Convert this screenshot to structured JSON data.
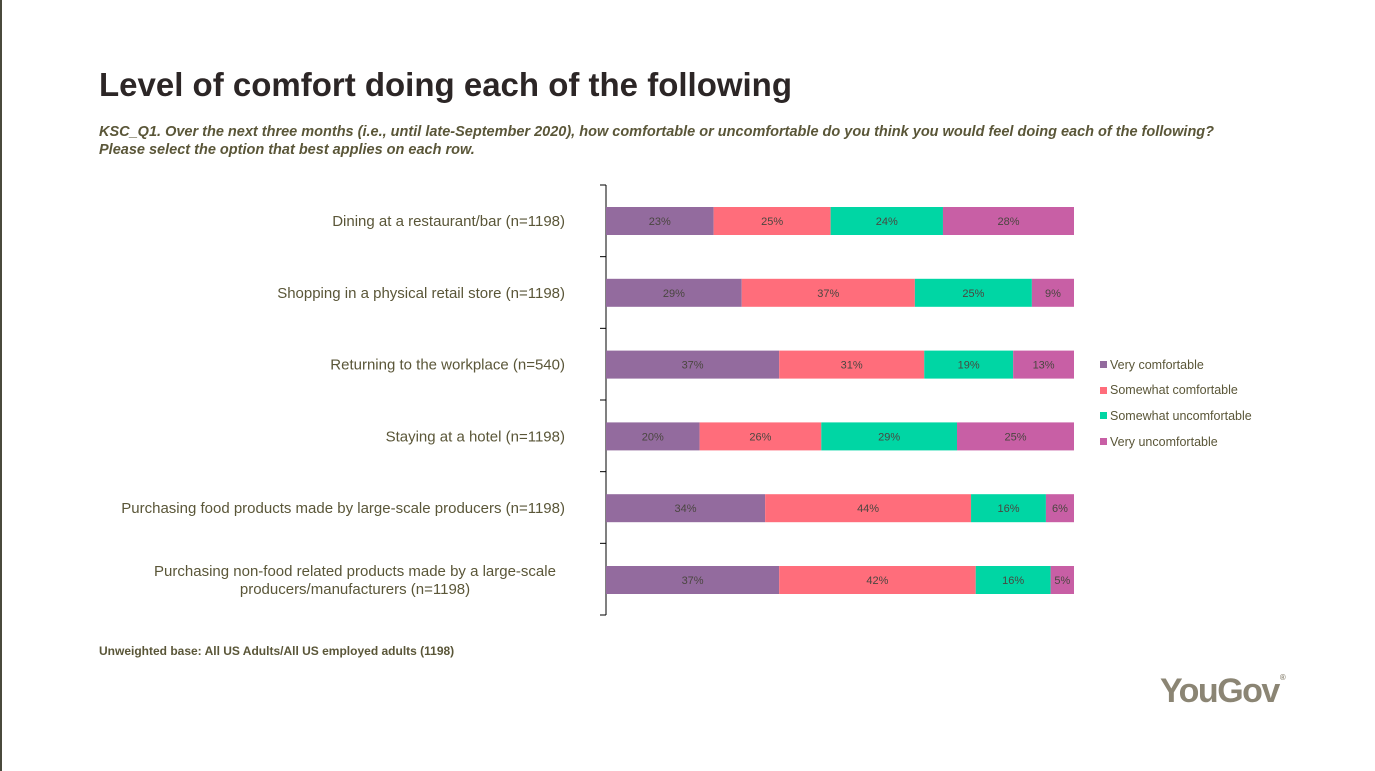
{
  "title": "Level of comfort doing each of the following",
  "subtitle": "KSC_Q1. Over the next three months (i.e., until late-September 2020), how comfortable or uncomfortable do you think you would feel doing each of the following? Please select the option that best applies on each row.",
  "footnote": "Unweighted base: All US Adults/All US employed adults (1198)",
  "logo_text": "YouGov",
  "logo_mark": "®",
  "chart_data": {
    "type": "bar",
    "orientation": "horizontal",
    "stacked": true,
    "percent_stacked": true,
    "categories": [
      [
        "Dining at a restaurant/bar (n=1198)"
      ],
      [
        "Shopping in a physical retail store (n=1198)"
      ],
      [
        "Returning to the workplace (n=540)"
      ],
      [
        "Staying at a hotel (n=1198)"
      ],
      [
        "Purchasing food products made by large-scale producers (n=1198)"
      ],
      [
        "Purchasing non-food related products made by a large-scale",
        "producers/manufacturers (n=1198)"
      ]
    ],
    "series": [
      {
        "name": "Very comfortable",
        "color": "#936b9e",
        "values": [
          23,
          29,
          37,
          20,
          34,
          37
        ]
      },
      {
        "name": "Somewhat comfortable",
        "color": "#ff6d7b",
        "values": [
          25,
          37,
          31,
          26,
          44,
          42
        ]
      },
      {
        "name": "Somewhat uncomfortable",
        "color": "#00d6a4",
        "values": [
          24,
          25,
          19,
          29,
          16,
          16
        ]
      },
      {
        "name": "Very uncomfortable",
        "color": "#c85fa5",
        "values": [
          28,
          9,
          13,
          25,
          6,
          5
        ]
      }
    ],
    "value_format": "{v}%",
    "legend_position": "right",
    "grid": false
  }
}
